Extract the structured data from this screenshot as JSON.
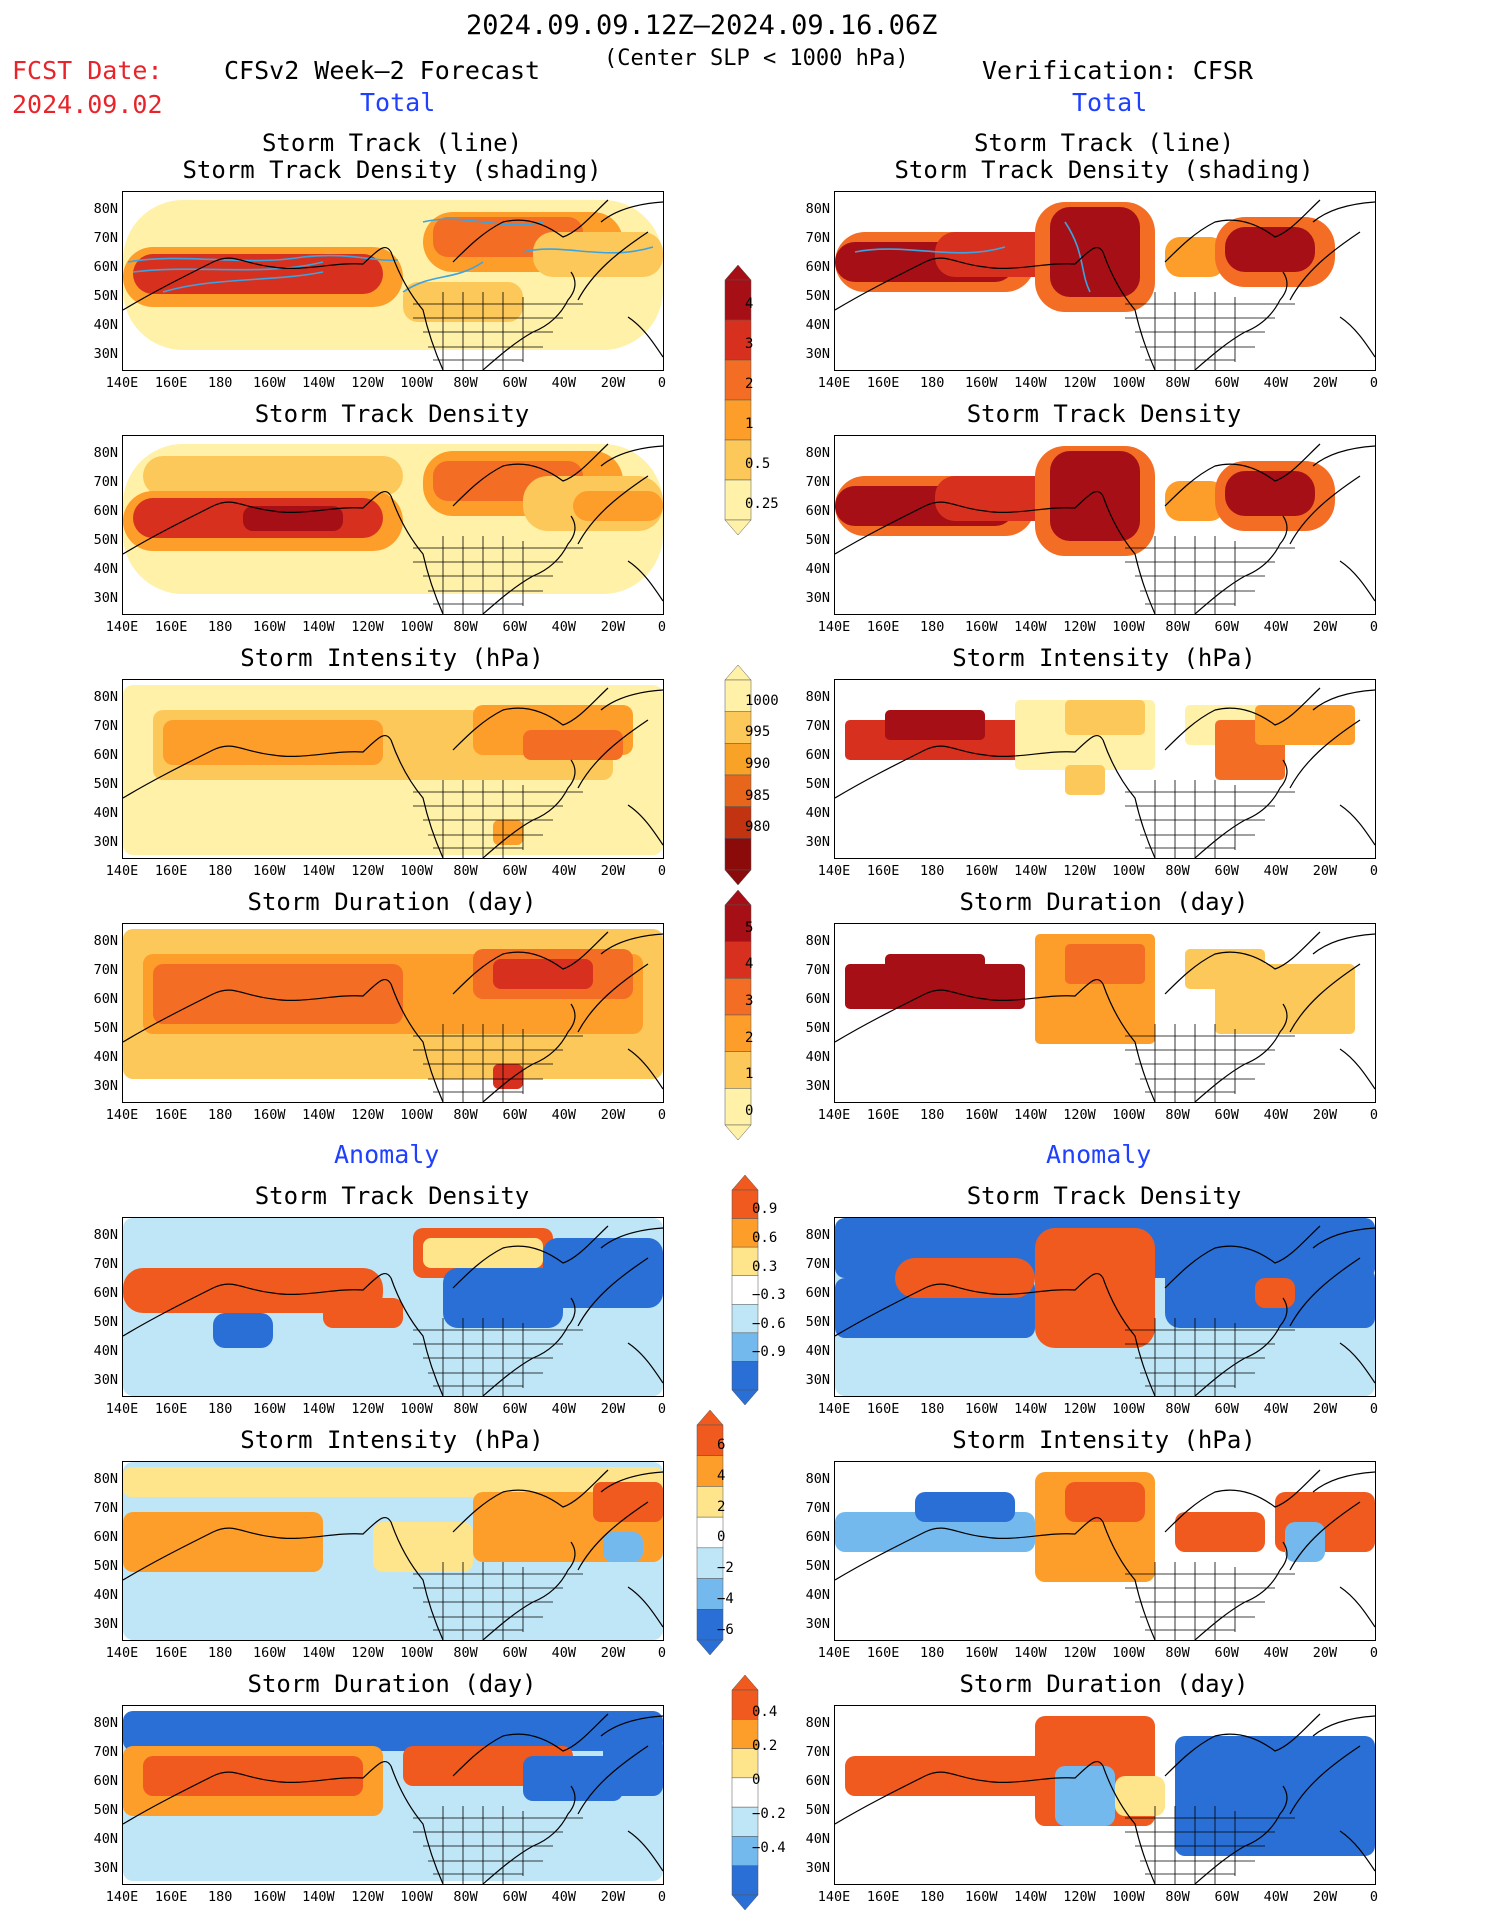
{
  "header": {
    "period": "2024.09.09.12Z–2024.09.16.06Z",
    "slp_note": "(Center SLP < 1000 hPa)",
    "fcst_label": "FCST Date:",
    "fcst_date": "2024.09.02",
    "left_model": "CFSv2 Week–2 Forecast",
    "right_model": "Verification: CFSR"
  },
  "sections": {
    "total": "Total",
    "anomaly": "Anomaly"
  },
  "panel_titles": {
    "track_line": "Storm Track (line)",
    "track_density_shading": "Storm Track Density (shading)",
    "density": "Storm Track Density",
    "intensity": "Storm Intensity (hPa)",
    "duration": "Storm Duration (day)"
  },
  "axes": {
    "lat_labels": [
      "80N",
      "70N",
      "60N",
      "50N",
      "40N",
      "30N"
    ],
    "lon_labels": [
      "140E",
      "160E",
      "180",
      "160W",
      "140W",
      "120W",
      "100W",
      "80W",
      "60W",
      "40W",
      "20W",
      "0"
    ]
  },
  "colorbars": {
    "density_total": {
      "labels": [
        "4",
        "3",
        "2",
        "1",
        "0.5",
        "0.25"
      ],
      "colors": [
        "#a50f15",
        "#d7301f",
        "#f46d25",
        "#fd9e2a",
        "#fdc85a",
        "#fff1a8"
      ]
    },
    "intensity_total": {
      "labels": [
        "1000",
        "995",
        "990",
        "985",
        "980"
      ],
      "colors": [
        "#fff1a8",
        "#fdc85a",
        "#f8a227",
        "#e8661c",
        "#c23311",
        "#8b0a0a"
      ]
    },
    "duration_total": {
      "labels": [
        "5",
        "4",
        "3",
        "2",
        "1",
        "0"
      ],
      "colors": [
        "#a50f15",
        "#d7301f",
        "#f46d25",
        "#fd9e2a",
        "#fdc85a",
        "#fff1a8"
      ]
    },
    "density_anom": {
      "labels": [
        "0.9",
        "0.6",
        "0.3",
        "−0.3",
        "−0.6",
        "−0.9"
      ],
      "colors": [
        "#f05a1e",
        "#fd9e2a",
        "#fee48a",
        "#ffffff",
        "#bfe6f7",
        "#74b9ee",
        "#2a6fd6"
      ]
    },
    "intensity_anom": {
      "labels": [
        "6",
        "4",
        "2",
        "0",
        "−2",
        "−4",
        "−6"
      ],
      "colors": [
        "#f05a1e",
        "#fd9e2a",
        "#fee48a",
        "#ffffff",
        "#bfe6f7",
        "#74b9ee",
        "#2a6fd6"
      ]
    },
    "duration_anom": {
      "labels": [
        "0.4",
        "0.2",
        "0",
        "−0.2",
        "−0.4"
      ],
      "colors": [
        "#f05a1e",
        "#fd9e2a",
        "#fee48a",
        "#ffffff",
        "#bfe6f7",
        "#74b9ee",
        "#2a6fd6"
      ]
    }
  },
  "colors": {
    "accent_red": "#e8242a",
    "accent_blue": "#2040ff",
    "track_line": "#3da3e0"
  }
}
